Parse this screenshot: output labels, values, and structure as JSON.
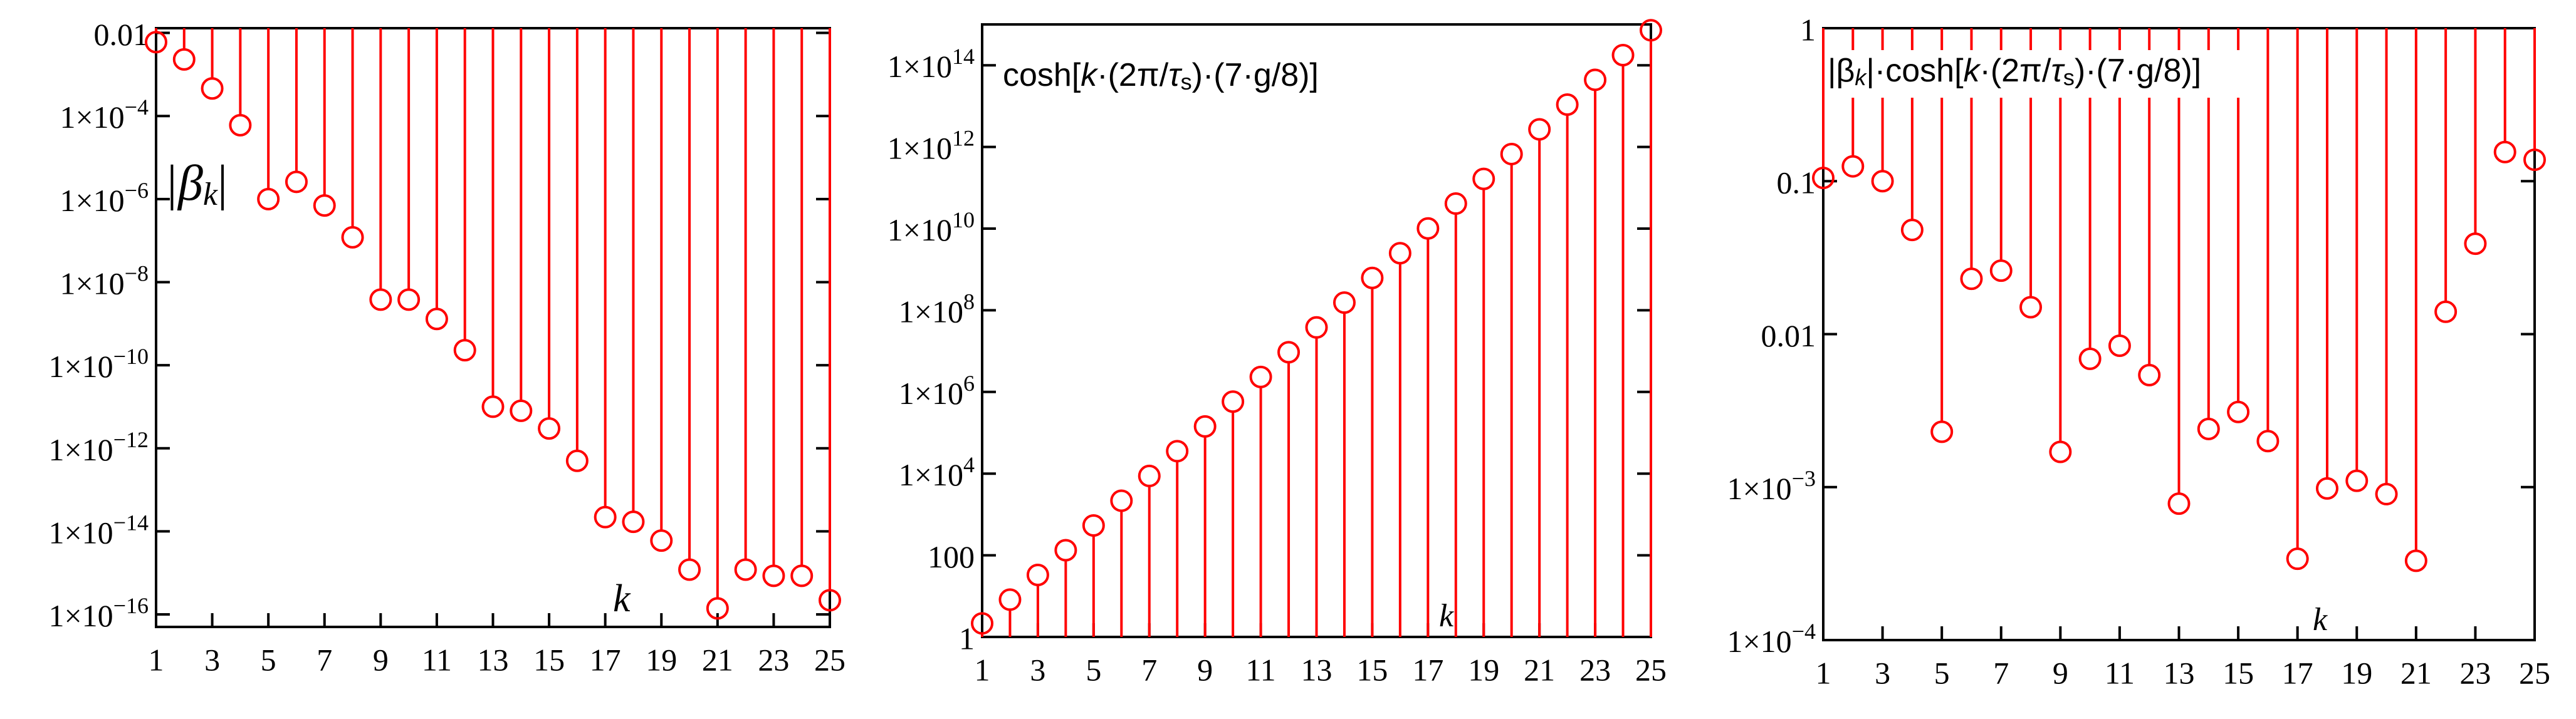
{
  "chart_data": [
    {
      "type": "stem",
      "log_y": true,
      "stem_from": "top",
      "color": "#ff0000",
      "x": [
        1,
        2,
        3,
        4,
        5,
        6,
        7,
        8,
        9,
        10,
        11,
        12,
        13,
        14,
        15,
        16,
        17,
        18,
        19,
        20,
        21,
        22,
        23,
        24,
        25
      ],
      "values": [
        0.006,
        0.0023,
        0.00046,
        6e-05,
        1e-06,
        2.6e-06,
        7e-07,
        1.2e-07,
        3.8e-09,
        3.8e-09,
        1.3e-09,
        2.3e-10,
        1e-11,
        8e-12,
        3e-12,
        5e-13,
        2.2e-14,
        1.7e-14,
        6e-15,
        1.2e-15,
        1.4e-16,
        1.2e-15,
        8.5e-16,
        8.5e-16,
        2.2e-16
      ],
      "xlim": [
        1,
        25
      ],
      "xticks": [
        1,
        3,
        5,
        7,
        9,
        11,
        13,
        15,
        17,
        19,
        21,
        23,
        25
      ],
      "ylim": [
        5e-17,
        0.013
      ],
      "yticks": [
        0.01,
        {
          "value": 0.0001,
          "label": "1×10−4"
        },
        {
          "value": 1e-06,
          "label": "1×10−6"
        },
        {
          "value": 1e-08,
          "label": "1×10−8"
        },
        {
          "value": 1e-10,
          "label": "1×10−10"
        },
        {
          "value": 1e-12,
          "label": "1×10−12"
        },
        {
          "value": 1e-14,
          "label": "1×10−14"
        },
        {
          "value": 1e-16,
          "label": "1×10−16"
        }
      ],
      "ylabel": [
        "|β",
        "k",
        "|"
      ],
      "xlabel": "k"
    },
    {
      "type": "stem",
      "log_y": true,
      "stem_from": "bottom",
      "color": "#ff0000",
      "x": [
        1,
        2,
        3,
        4,
        5,
        6,
        7,
        8,
        9,
        10,
        11,
        12,
        13,
        14,
        15,
        16,
        17,
        18,
        19,
        20,
        21,
        22,
        23,
        24,
        25
      ],
      "values": [
        2.15,
        8.2,
        33,
        133,
        537,
        2170,
        8770,
        35500,
        143000,
        580000,
        2330000,
        9400000,
        38000000,
        154000000,
        620000000,
        2500000000,
        10100000000,
        41000000000,
        165000000000,
        670000000000,
        2700000000000,
        10900000000000,
        44000000000000,
        177000000000000,
        720000000000000
      ],
      "xlim": [
        1,
        25
      ],
      "xticks": [
        1,
        3,
        5,
        7,
        9,
        11,
        13,
        15,
        17,
        19,
        21,
        23,
        25
      ],
      "ylim": [
        1,
        1000000000000000
      ],
      "yticks": [
        1,
        100,
        {
          "value": 10000,
          "label": "1×104"
        },
        {
          "value": 1000000,
          "label": "1×106"
        },
        {
          "value": 100000000,
          "label": "1×108"
        },
        {
          "value": 10000000000,
          "label": "1×1010"
        },
        {
          "value": 1000000000000,
          "label": "1×1012"
        },
        {
          "value": 100000000000000,
          "label": "1×1014"
        }
      ],
      "ylabel": [
        "cosh[",
        "k",
        "·(2π/",
        "τ",
        "s",
        ")·(7·g/8)]"
      ],
      "xlabel": "k"
    },
    {
      "type": "stem",
      "log_y": true,
      "stem_from": "top",
      "color": "#ff0000",
      "x": [
        1,
        2,
        3,
        4,
        5,
        6,
        7,
        8,
        9,
        10,
        11,
        12,
        13,
        14,
        15,
        16,
        17,
        18,
        19,
        20,
        21,
        22,
        23,
        24,
        25
      ],
      "values": [
        0.105,
        0.125,
        0.1,
        0.048,
        0.0023,
        0.023,
        0.026,
        0.015,
        0.0017,
        0.0069,
        0.0084,
        0.0054,
        0.00078,
        0.0024,
        0.0031,
        0.002,
        0.00034,
        0.00098,
        0.0011,
        0.0009,
        0.00033,
        0.014,
        0.039,
        0.155,
        0.138
      ],
      "xlim": [
        1,
        25
      ],
      "xticks": [
        1,
        3,
        5,
        7,
        9,
        11,
        13,
        15,
        17,
        19,
        21,
        23,
        25
      ],
      "ylim": [
        0.0001,
        1
      ],
      "yticks": [
        {
          "value": 0.0001,
          "label": "1×10−4"
        },
        {
          "value": 0.001,
          "label": "1×10−3"
        },
        0.01,
        0.1,
        1
      ],
      "ylabel": [
        "|β",
        "k",
        "|·cosh[",
        "k",
        "·(2π/",
        "τ",
        "s",
        ")·(7·g/8)]"
      ],
      "xlabel": "k"
    }
  ]
}
